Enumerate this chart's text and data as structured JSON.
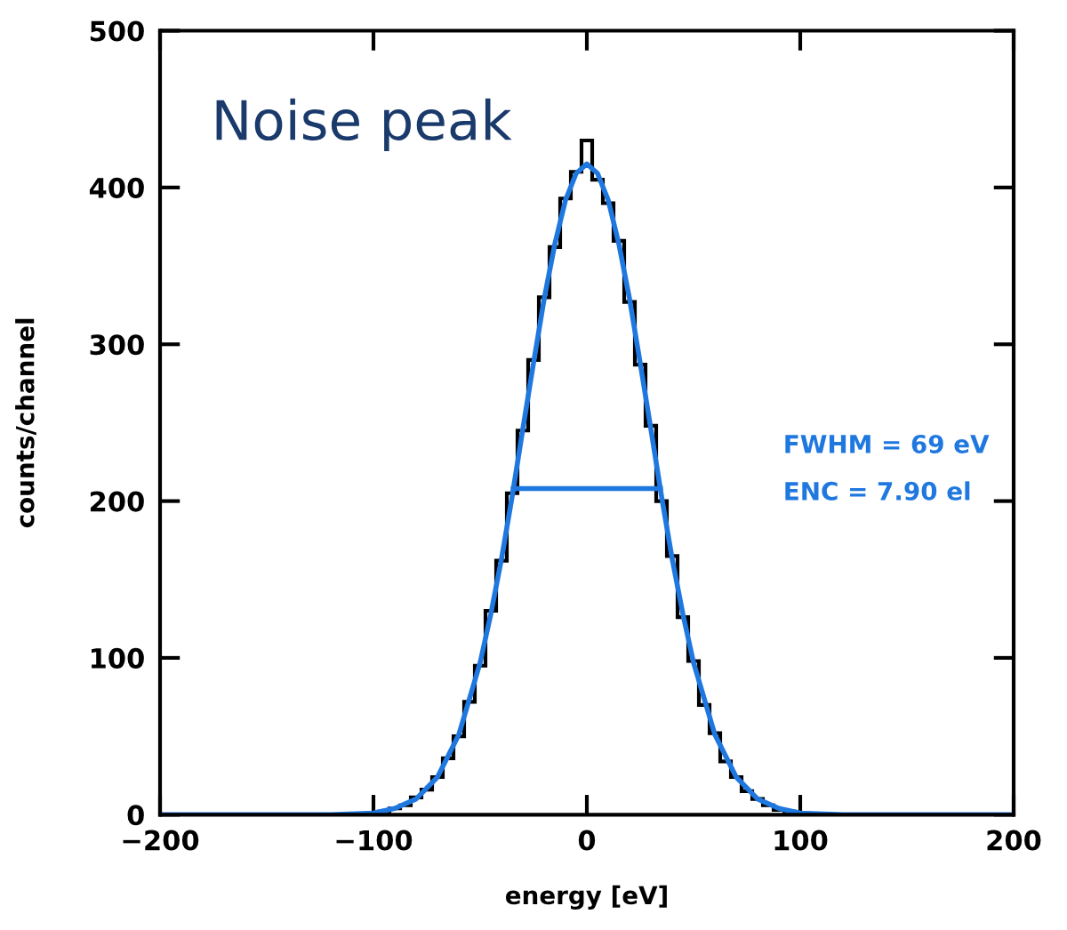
{
  "chart_data": {
    "type": "histogram",
    "xlabel": "energy [eV]",
    "ylabel": "counts/channel",
    "xlim": [
      -200,
      200
    ],
    "ylim": [
      0,
      500
    ],
    "xticks": [
      {
        "value": -200,
        "label": "−200"
      },
      {
        "value": -100,
        "label": "−100"
      },
      0,
      100,
      200
    ],
    "yticks": [
      0,
      100,
      200,
      300,
      400,
      500
    ],
    "annotations": [
      "Noise peak",
      "FWHM = 69 eV",
      "ENC = 7.90 el"
    ],
    "grid": false,
    "legend": false,
    "series": [
      {
        "color": "#000000",
        "bins": [
          -102.5,
          -97.5,
          -92.5,
          -87.5,
          -82.5,
          -77.5,
          -72.5,
          -67.5,
          -62.5,
          -57.5,
          -52.5,
          -47.5,
          -42.5,
          -37.5,
          -32.5,
          -27.5,
          -22.5,
          -17.5,
          -12.5,
          -7.5,
          -2.5,
          2.5,
          7.5,
          12.5,
          17.5,
          22.5,
          27.5,
          32.5,
          37.5,
          42.5,
          47.5,
          52.5,
          57.5,
          62.5,
          67.5,
          72.5,
          77.5,
          82.5,
          87.5,
          92.5,
          97.5,
          102.5
        ],
        "values": [
          1,
          2,
          4,
          6,
          11,
          16,
          24,
          36,
          50,
          72,
          95,
          130,
          162,
          205,
          245,
          290,
          330,
          362,
          393,
          410,
          430,
          405,
          390,
          366,
          327,
          287,
          248,
          200,
          165,
          126,
          98,
          70,
          52,
          34,
          24,
          15,
          10,
          6,
          3,
          2,
          1
        ]
      },
      {
        "type": "line",
        "color": "#1f78e0",
        "x": [
          -200,
          -150,
          -120,
          -100,
          -90,
          -80,
          -70,
          -60,
          -50,
          -45,
          -40,
          -35,
          -30,
          -25,
          -20,
          -15,
          -10,
          -5,
          0,
          5,
          10,
          15,
          20,
          25,
          30,
          35,
          40,
          45,
          50,
          60,
          70,
          80,
          90,
          100,
          120,
          150,
          200
        ],
        "values": [
          0,
          0,
          0,
          1,
          4,
          10,
          24,
          51,
          97,
          128,
          163,
          203,
          246,
          288,
          329,
          364,
          392,
          409,
          415,
          409,
          392,
          364,
          329,
          288,
          246,
          203,
          163,
          128,
          97,
          51,
          24,
          10,
          4,
          1,
          0,
          0,
          0
        ]
      },
      {
        "type": "line",
        "color": "#1f78e0",
        "x": [
          -34.5,
          34.5
        ],
        "values": [
          208,
          208
        ]
      }
    ]
  }
}
